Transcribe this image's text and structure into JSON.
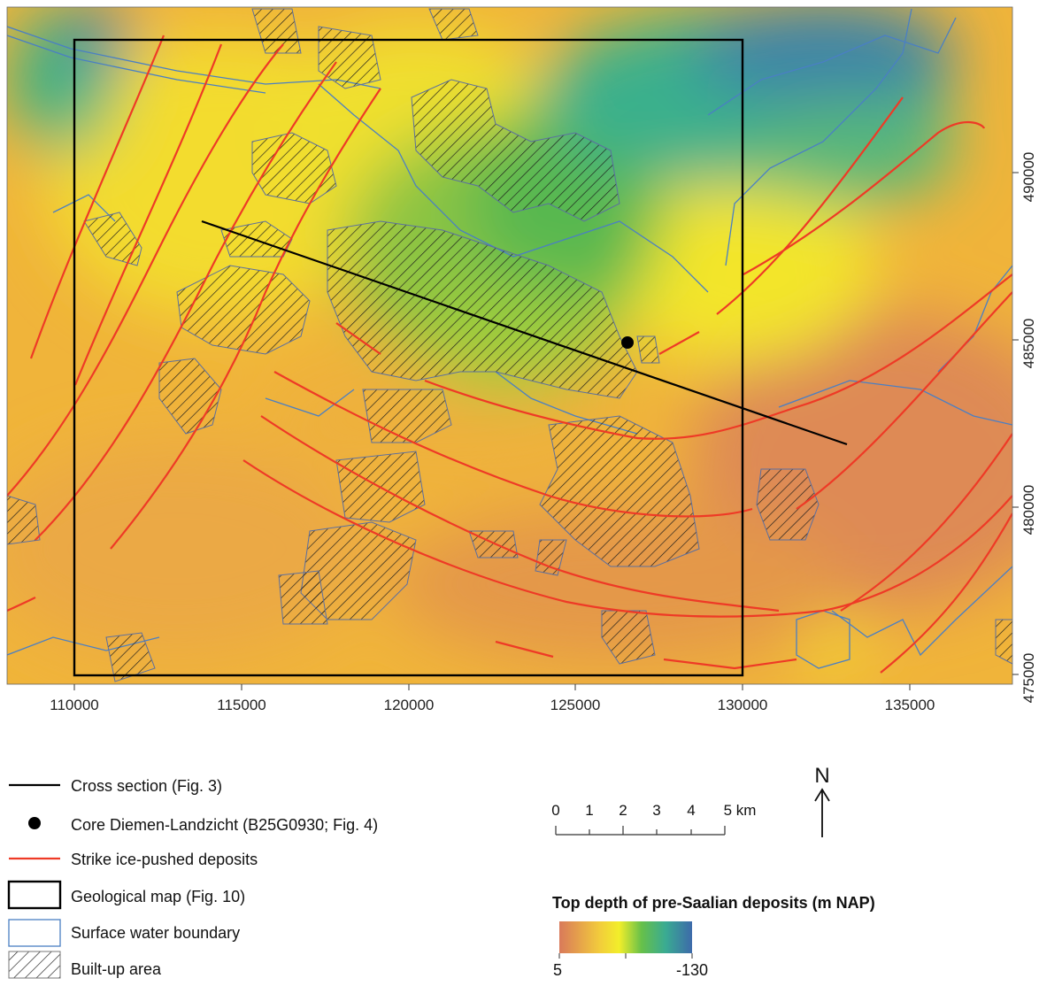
{
  "map": {
    "x_ticks": [
      "110000",
      "115000",
      "120000",
      "125000",
      "130000",
      "135000"
    ],
    "y_ticks": [
      "490000",
      "485000",
      "480000",
      "475000"
    ]
  },
  "legend": {
    "items": [
      {
        "label": "Cross section (Fig. 3)",
        "symbol": "black-line"
      },
      {
        "label": "Core Diemen-Landzicht (B25G0930; Fig. 4)",
        "symbol": "black-dot"
      },
      {
        "label": "Strike ice-pushed deposits",
        "symbol": "red-line"
      },
      {
        "label": "Geological map (Fig. 10)",
        "symbol": "black-box"
      },
      {
        "label": "Surface water boundary",
        "symbol": "blue-box"
      },
      {
        "label": "Built-up area",
        "symbol": "hatched-box"
      }
    ]
  },
  "scale_bar": {
    "labels": [
      "0",
      "1",
      "2",
      "3",
      "4",
      "5 km"
    ]
  },
  "north_arrow": {
    "label": "N"
  },
  "colorbar": {
    "title": "Top depth of pre-Saalian deposits (m NAP)",
    "min_label": "5",
    "max_label": "-130",
    "colors": [
      "#d9795a",
      "#f2cb3c",
      "#f2ee2a",
      "#66c04a",
      "#3aab92",
      "#3d6aaa"
    ]
  },
  "colors": {
    "strike": "#ee3a26",
    "water": "#4a7fc4",
    "frame": "#000000"
  }
}
